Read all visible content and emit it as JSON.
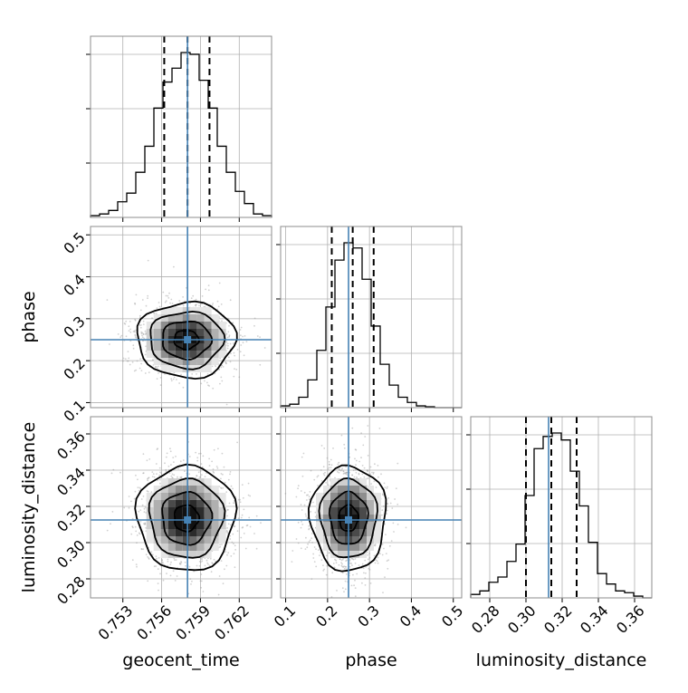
{
  "chart_data": {
    "type": "corner",
    "grid": true,
    "parameters": [
      {
        "name": "geocent_time",
        "label": "geocent_time",
        "range": [
          0.7505,
          0.7645
        ],
        "ticks": [
          0.753,
          0.756,
          0.759,
          0.762
        ],
        "tick_labels": [
          "0.753",
          "0.756",
          "0.759",
          "0.762"
        ],
        "truth": 0.758,
        "quantiles": [
          0.7562,
          0.758,
          0.7597
        ]
      },
      {
        "name": "phase",
        "label": "phase",
        "range": [
          0.088,
          0.52
        ],
        "ticks": [
          0.1,
          0.2,
          0.3,
          0.4,
          0.5
        ],
        "tick_labels": [
          "0.1",
          "0.2",
          "0.3",
          "0.4",
          "0.5"
        ],
        "truth": 0.25,
        "quantiles": [
          0.21,
          0.26,
          0.31
        ]
      },
      {
        "name": "luminosity_distance",
        "label": "luminosity_distance",
        "range": [
          0.2695,
          0.3695
        ],
        "ticks": [
          0.28,
          0.3,
          0.32,
          0.34,
          0.36
        ],
        "tick_labels": [
          "0.28",
          "0.30",
          "0.32",
          "0.34",
          "0.36"
        ],
        "truth": 0.3125,
        "quantiles": [
          0.3,
          0.314,
          0.328
        ]
      }
    ],
    "histograms": [
      {
        "parameter": "geocent_time",
        "edges": [
          0.7505,
          0.7512,
          0.7519,
          0.7526,
          0.7533,
          0.754,
          0.7547,
          0.7554,
          0.7561,
          0.7568,
          0.7575,
          0.7582,
          0.7589,
          0.7596,
          0.7603,
          0.761,
          0.7617,
          0.7624,
          0.7631,
          0.7638,
          0.7645
        ],
        "counts": [
          1,
          2,
          4,
          9,
          14,
          26,
          41,
          63,
          78,
          86,
          95,
          94,
          79,
          63,
          41,
          26,
          15,
          8,
          2,
          1
        ]
      },
      {
        "parameter": "phase",
        "edges": [
          0.088,
          0.1096,
          0.1312,
          0.1528,
          0.1744,
          0.196,
          0.2176,
          0.2392,
          0.2608,
          0.2824,
          0.304,
          0.3256,
          0.3472,
          0.3688,
          0.3904,
          0.412,
          0.4336,
          0.4552,
          0.4768,
          0.4984,
          0.52
        ],
        "counts": [
          1,
          2,
          6,
          16,
          33,
          58,
          85,
          95,
          92,
          74,
          47,
          25,
          13,
          6,
          3,
          1,
          0.5,
          0,
          0,
          0
        ]
      },
      {
        "parameter": "luminosity_distance",
        "edges": [
          0.2695,
          0.2745,
          0.2795,
          0.2845,
          0.2895,
          0.2945,
          0.2995,
          0.3045,
          0.3095,
          0.3145,
          0.3195,
          0.3245,
          0.3295,
          0.3345,
          0.3395,
          0.3445,
          0.3495,
          0.3545,
          0.3595,
          0.3645,
          0.3695
        ],
        "counts": [
          2,
          4,
          9,
          12,
          21,
          31,
          59,
          86,
          93,
          95,
          91,
          73,
          53,
          32,
          14,
          8,
          4,
          3,
          1,
          0
        ]
      }
    ],
    "contours_2d": [
      {
        "x": "geocent_time",
        "y": "phase",
        "center": [
          0.7579,
          0.25
        ],
        "sigma": [
          0.0019,
          0.045
        ]
      },
      {
        "x": "geocent_time",
        "y": "luminosity_distance",
        "center": [
          0.7579,
          0.3135
        ],
        "sigma": [
          0.0019,
          0.0145
        ]
      },
      {
        "x": "phase",
        "y": "luminosity_distance",
        "center": [
          0.25,
          0.3135
        ],
        "sigma": [
          0.045,
          0.0145
        ]
      }
    ],
    "truth_color": "#4682b4",
    "hist_color": "#000000"
  }
}
